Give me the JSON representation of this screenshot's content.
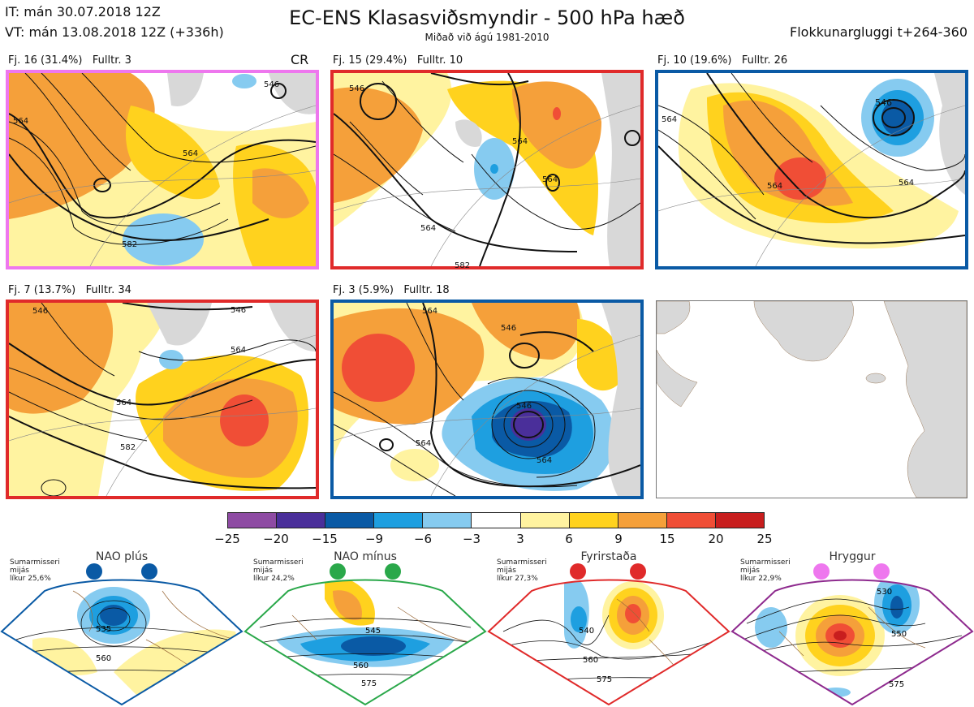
{
  "header": {
    "it": "IT: mán 30.07.2018 12Z",
    "vt": "VT: mán 13.08.2018 12Z  (+336h)",
    "title": "EC-ENS Klasasviðsmyndir - 500 hPa hæð",
    "subtitle": "Miðað við ágú 1981-2010",
    "window": "Flokkunargluggi t+264-360"
  },
  "panels": [
    {
      "label": "Fj. 16 (31.4%)",
      "fulltr": "Fulltr. 3",
      "border": "#ee77ee",
      "cr": "CR",
      "contours": [
        "564",
        "564",
        "582",
        "546"
      ]
    },
    {
      "label": "Fj. 15 (29.4%)",
      "fulltr": "Fulltr. 10",
      "border": "#e02a2a",
      "contours": [
        "546",
        "564",
        "564",
        "564",
        "582"
      ]
    },
    {
      "label": "Fj. 10 (19.6%)",
      "fulltr": "Fulltr. 26",
      "border": "#0a5aa5",
      "contours": [
        "546",
        "564",
        "564",
        "564"
      ]
    },
    {
      "label": "Fj. 7 (13.7%)",
      "fulltr": "Fulltr. 34",
      "border": "#e02a2a",
      "contours": [
        "546",
        "546",
        "564",
        "564",
        "582"
      ]
    },
    {
      "label": "Fj. 3 (5.9%)",
      "fulltr": "Fulltr. 18",
      "border": "#0a5aa5",
      "contours": [
        "564",
        "546",
        "546",
        "564",
        "564"
      ]
    }
  ],
  "colorbar": {
    "colors": [
      "#8e4ba3",
      "#4a2f9a",
      "#0a5aa5",
      "#1e9fe0",
      "#86cbf0",
      "#ffffff",
      "#fff3a0",
      "#ffd21e",
      "#f5a03a",
      "#f04e36",
      "#c81e1e"
    ],
    "ticks": [
      "−25",
      "−20",
      "−15",
      "−9",
      "−6",
      "−3",
      "3",
      "6",
      "9",
      "15",
      "20",
      "25"
    ]
  },
  "regimes": [
    {
      "name": "NAO plús",
      "color": "#0a5aa5",
      "desc": [
        "Sumarmisseri",
        "mijás",
        "líkur 25,6%"
      ],
      "contours": [
        "535",
        "560"
      ]
    },
    {
      "name": "NAO mínus",
      "color": "#2aa84a",
      "desc": [
        "Sumarmisseri",
        "mijás",
        "líkur 24,2%"
      ],
      "contours": [
        "545",
        "560",
        "575"
      ]
    },
    {
      "name": "Fyrirstaða",
      "color": "#e02a2a",
      "desc": [
        "Sumarmisseri",
        "mijás",
        "líkur 27,3%"
      ],
      "contours": [
        "540",
        "560",
        "575"
      ]
    },
    {
      "name": "Hryggur",
      "color": "#ee77ee",
      "desc": [
        "Sumarmisseri",
        "mijás",
        "líkur 22,9%"
      ],
      "contours": [
        "530",
        "550",
        "575"
      ]
    }
  ]
}
